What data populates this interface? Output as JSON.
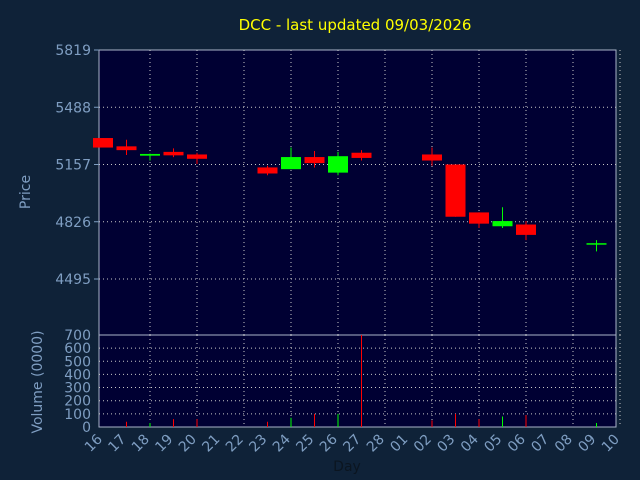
{
  "chart_data": {
    "type": "candlestick",
    "title": "DCC - last updated 09/03/2026",
    "ylabel": "Price",
    "volume_label": "Volume (0000)",
    "xlabel": "Day",
    "price_ticks": [
      "5819",
      "5488",
      "5157",
      "4826",
      "4495"
    ],
    "price_range": [
      4420,
      5819
    ],
    "volume_ticks": [
      "700",
      "600",
      "500",
      "400",
      "300",
      "200",
      "100",
      "0"
    ],
    "volume_range": [
      0,
      700
    ],
    "x_labels": [
      "16",
      "17",
      "18",
      "19",
      "20",
      "21",
      "22",
      "23",
      "24",
      "25",
      "26",
      "27",
      "28",
      "01",
      "02",
      "03",
      "04",
      "05",
      "06",
      "07",
      "08",
      "09",
      "10"
    ],
    "candles": [
      {
        "day": "16",
        "open": 5310,
        "close": 5255,
        "high": 5310,
        "low": 5255,
        "volume": 0
      },
      {
        "day": "17",
        "open": 5262,
        "close": 5240,
        "high": 5300,
        "low": 5212,
        "volume": 40
      },
      {
        "day": "18",
        "open": 5208,
        "close": 5218,
        "high": 5220,
        "low": 5180,
        "volume": 30
      },
      {
        "day": "19",
        "open": 5230,
        "close": 5210,
        "high": 5250,
        "low": 5200,
        "volume": 60
      },
      {
        "day": "20",
        "open": 5215,
        "close": 5190,
        "high": 5225,
        "low": 5160,
        "volume": 60
      },
      {
        "day": "23",
        "open": 5140,
        "close": 5105,
        "high": 5150,
        "low": 5095,
        "volume": 40
      },
      {
        "day": "24",
        "open": 5130,
        "close": 5200,
        "high": 5255,
        "low": 5130,
        "volume": 70
      },
      {
        "day": "25",
        "open": 5200,
        "close": 5165,
        "high": 5235,
        "low": 5140,
        "volume": 100
      },
      {
        "day": "26",
        "open": 5110,
        "close": 5205,
        "high": 5230,
        "low": 5095,
        "volume": 100
      },
      {
        "day": "27",
        "open": 5225,
        "close": 5195,
        "high": 5240,
        "low": 5180,
        "volume": 700
      },
      {
        "day": "02",
        "open": 5215,
        "close": 5180,
        "high": 5255,
        "low": 5150,
        "volume": 50
      },
      {
        "day": "03",
        "open": 5157,
        "close": 4855,
        "high": 5157,
        "low": 4855,
        "volume": 100
      },
      {
        "day": "04",
        "open": 4880,
        "close": 4815,
        "high": 4880,
        "low": 4790,
        "volume": 60
      },
      {
        "day": "05",
        "open": 4800,
        "close": 4830,
        "high": 4910,
        "low": 4790,
        "volume": 80
      },
      {
        "day": "06",
        "open": 4810,
        "close": 4750,
        "high": 4830,
        "low": 4720,
        "volume": 90
      },
      {
        "day": "09",
        "open": 4702,
        "close": 4702,
        "high": 4720,
        "low": 4655,
        "volume": 30
      }
    ],
    "colors": {
      "background": "#0f2238",
      "plot": "#000033",
      "up": "#00ff00",
      "down": "#ff0000",
      "title": "#ffff00",
      "axis_text": "#7f9ec2",
      "grid": "#c8c8c8"
    }
  }
}
